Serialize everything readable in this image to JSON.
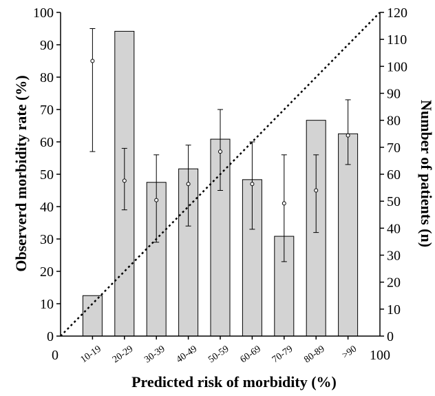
{
  "chart_data": {
    "type": "bar",
    "title": "",
    "xlabel": "Predicted risk of morbidity (%)",
    "ylabel_left": "Observerd morbidity rate (%)",
    "ylabel_right": "Number of patients (n)",
    "x_axis_ends": [
      "0",
      "100"
    ],
    "categories": [
      "10-19",
      "20-29",
      "30-39",
      "40-49",
      "50-59",
      "60-69",
      "70-79",
      "80-89",
      ">90"
    ],
    "left_axis": {
      "min": 0,
      "max": 100,
      "step": 10,
      "ticks": [
        "0",
        "10",
        "20",
        "30",
        "40",
        "50",
        "60",
        "70",
        "80",
        "90",
        "100"
      ]
    },
    "right_axis": {
      "min": 0,
      "max": 120,
      "step": 10,
      "ticks": [
        "0",
        "10",
        "20",
        "30",
        "40",
        "50",
        "60",
        "70",
        "80",
        "90",
        "100",
        "110",
        "120"
      ]
    },
    "series": [
      {
        "type": "bar",
        "axis": "right",
        "values": [
          15,
          113,
          57,
          62,
          73,
          58,
          37,
          80,
          75
        ],
        "color": "#d3d3d3"
      },
      {
        "type": "point-errorbar",
        "axis": "left",
        "values": [
          85,
          48,
          42,
          47,
          57,
          47,
          41,
          45,
          62
        ],
        "lower": [
          57,
          39,
          29,
          34,
          45,
          33,
          23,
          32,
          53
        ],
        "upper": [
          95,
          58,
          56,
          59,
          70,
          60,
          56,
          56,
          73
        ]
      },
      {
        "type": "reference-line",
        "style": "dotted",
        "from": [
          0,
          0
        ],
        "to": [
          100,
          100
        ]
      }
    ],
    "grid": false,
    "legend": "none"
  }
}
